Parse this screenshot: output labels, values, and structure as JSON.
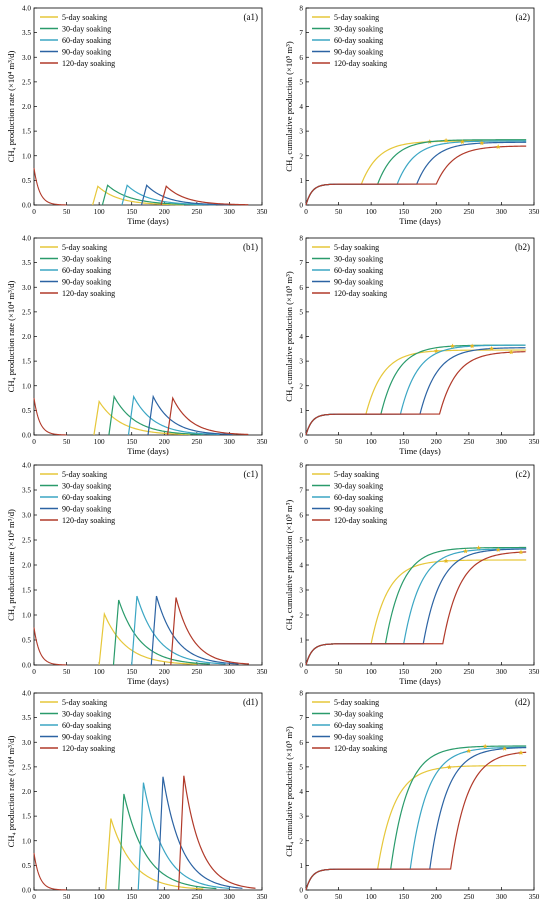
{
  "colors": {
    "s5": "#E6C73A",
    "s30": "#2A9B6B",
    "s60": "#3BA6C4",
    "s90": "#2C63A3",
    "s120": "#B13A2A"
  },
  "axis_titles": {
    "x": "Time (days)",
    "y_left": "CH₄ production rate (×10⁴ m³/d)",
    "y_right": "CH₄ cumulative production (×10⁵ m³)"
  },
  "chart_data": [
    {
      "type": "line",
      "panel": "(a1)",
      "xlabel": "Time (days)",
      "ylabel": "CH₄ production rate (×10⁴ m³/d)",
      "xlim": [
        0,
        350
      ],
      "ylim": [
        0,
        4.0
      ],
      "xticks": [
        "0",
        "50",
        "100",
        "150",
        "200",
        "250",
        "300",
        "350"
      ],
      "yticks": [
        "0.0",
        "0.5",
        "1.0",
        "1.5",
        "2.0",
        "2.5",
        "3.0",
        "3.5",
        "4.0"
      ],
      "legend": [
        "5-day soaking",
        "30-day soaking",
        "60-day soaking",
        "90-day soaking",
        "120-day soaking"
      ],
      "legend_position": "top-left",
      "initial": {
        "start": 0.75,
        "end_day": 50
      },
      "series": [
        {
          "name": "5-day soaking",
          "start": 90,
          "peak": 0.38,
          "end": 230,
          "color_key": "s5"
        },
        {
          "name": "30-day soaking",
          "start": 105,
          "peak": 0.4,
          "end": 260,
          "color_key": "s30"
        },
        {
          "name": "60-day soaking",
          "start": 135,
          "peak": 0.4,
          "end": 280,
          "color_key": "s60"
        },
        {
          "name": "90-day soaking",
          "start": 165,
          "peak": 0.4,
          "end": 300,
          "color_key": "s90"
        },
        {
          "name": "120-day soaking",
          "start": 195,
          "peak": 0.38,
          "end": 330,
          "color_key": "s120"
        }
      ]
    },
    {
      "type": "line",
      "panel": "(a2)",
      "xlabel": "Time (days)",
      "ylabel": "CH₄ cumulative production (×10⁵ m³)",
      "xlim": [
        0,
        350
      ],
      "ylim": [
        0,
        8
      ],
      "xticks": [
        "0",
        "50",
        "100",
        "150",
        "200",
        "250",
        "300",
        "350"
      ],
      "yticks": [
        "0",
        "1",
        "2",
        "3",
        "4",
        "5",
        "6",
        "7",
        "8"
      ],
      "legend": [
        "5-day soaking",
        "30-day soaking",
        "60-day soaking",
        "90-day soaking",
        "120-day soaking"
      ],
      "legend_position": "top-left",
      "plateau": 0.85,
      "series": [
        {
          "name": "5-day soaking",
          "start": 85,
          "final": 2.6,
          "star_x": 190,
          "color_key": "s5"
        },
        {
          "name": "30-day soaking",
          "start": 110,
          "final": 2.65,
          "star_x": 215,
          "color_key": "s30"
        },
        {
          "name": "60-day soaking",
          "start": 140,
          "final": 2.6,
          "star_x": 240,
          "color_key": "s60"
        },
        {
          "name": "90-day soaking",
          "start": 170,
          "final": 2.55,
          "star_x": 270,
          "color_key": "s90"
        },
        {
          "name": "120-day soaking",
          "start": 200,
          "final": 2.4,
          "star_x": 295,
          "color_key": "s120"
        }
      ]
    },
    {
      "type": "line",
      "panel": "(b1)",
      "xlabel": "Time (days)",
      "ylabel": "CH₄ production rate (×10⁴ m³/d)",
      "xlim": [
        0,
        350
      ],
      "ylim": [
        0,
        4.0
      ],
      "xticks": [
        "0",
        "50",
        "100",
        "150",
        "200",
        "250",
        "300",
        "350"
      ],
      "yticks": [
        "0.0",
        "0.5",
        "1.0",
        "1.5",
        "2.0",
        "2.5",
        "3.0",
        "3.5",
        "4.0"
      ],
      "legend": [
        "5-day soaking",
        "30-day soaking",
        "60-day soaking",
        "90-day soaking",
        "120-day soaking"
      ],
      "legend_position": "top-left",
      "initial": {
        "start": 0.75,
        "end_day": 50
      },
      "series": [
        {
          "name": "5-day soaking",
          "start": 92,
          "peak": 0.68,
          "end": 240,
          "color_key": "s5"
        },
        {
          "name": "30-day soaking",
          "start": 115,
          "peak": 0.78,
          "end": 260,
          "color_key": "s30"
        },
        {
          "name": "60-day soaking",
          "start": 145,
          "peak": 0.78,
          "end": 285,
          "color_key": "s60"
        },
        {
          "name": "90-day soaking",
          "start": 175,
          "peak": 0.78,
          "end": 305,
          "color_key": "s90"
        },
        {
          "name": "120-day soaking",
          "start": 205,
          "peak": 0.75,
          "end": 330,
          "color_key": "s120"
        }
      ]
    },
    {
      "type": "line",
      "panel": "(b2)",
      "xlabel": "Time (days)",
      "ylabel": "CH₄ cumulative production (×10⁵ m³)",
      "xlim": [
        0,
        350
      ],
      "ylim": [
        0,
        8
      ],
      "xticks": [
        "0",
        "50",
        "100",
        "150",
        "200",
        "250",
        "300",
        "350"
      ],
      "yticks": [
        "0",
        "1",
        "2",
        "3",
        "4",
        "5",
        "6",
        "7",
        "8"
      ],
      "legend": [
        "5-day soaking",
        "30-day soaking",
        "60-day soaking",
        "90-day soaking",
        "120-day soaking"
      ],
      "legend_position": "top-left",
      "plateau": 0.85,
      "series": [
        {
          "name": "5-day soaking",
          "start": 92,
          "final": 3.45,
          "star_x": 200,
          "color_key": "s5"
        },
        {
          "name": "30-day soaking",
          "start": 115,
          "final": 3.65,
          "star_x": 225,
          "color_key": "s30"
        },
        {
          "name": "60-day soaking",
          "start": 145,
          "final": 3.65,
          "star_x": 255,
          "color_key": "s60"
        },
        {
          "name": "90-day soaking",
          "start": 175,
          "final": 3.55,
          "star_x": 285,
          "color_key": "s90"
        },
        {
          "name": "120-day soaking",
          "start": 205,
          "final": 3.4,
          "star_x": 315,
          "color_key": "s120"
        }
      ]
    },
    {
      "type": "line",
      "panel": "(c1)",
      "xlabel": "Time (days)",
      "ylabel": "CH₄ production rate (×10⁴ m³/d)",
      "xlim": [
        0,
        350
      ],
      "ylim": [
        0,
        4.0
      ],
      "xticks": [
        "0",
        "50",
        "100",
        "150",
        "200",
        "250",
        "300",
        "350"
      ],
      "yticks": [
        "0.0",
        "0.5",
        "1.0",
        "1.5",
        "2.0",
        "2.5",
        "3.0",
        "3.5",
        "4.0"
      ],
      "legend": [
        "5-day soaking",
        "30-day soaking",
        "60-day soaking",
        "90-day soaking",
        "120-day soaking"
      ],
      "legend_position": "top-left",
      "initial": {
        "start": 0.75,
        "end_day": 50
      },
      "series": [
        {
          "name": "5-day soaking",
          "start": 100,
          "peak": 1.02,
          "end": 250,
          "color_key": "s5"
        },
        {
          "name": "30-day soaking",
          "start": 122,
          "peak": 1.3,
          "end": 270,
          "color_key": "s30"
        },
        {
          "name": "60-day soaking",
          "start": 150,
          "peak": 1.38,
          "end": 295,
          "color_key": "s60"
        },
        {
          "name": "90-day soaking",
          "start": 180,
          "peak": 1.38,
          "end": 315,
          "color_key": "s90"
        },
        {
          "name": "120-day soaking",
          "start": 210,
          "peak": 1.35,
          "end": 330,
          "color_key": "s120"
        }
      ]
    },
    {
      "type": "line",
      "panel": "(c2)",
      "xlabel": "Time (days)",
      "ylabel": "CH₄ cumulative production (×10⁵ m³)",
      "xlim": [
        0,
        350
      ],
      "ylim": [
        0,
        8
      ],
      "xticks": [
        "0",
        "50",
        "100",
        "150",
        "200",
        "250",
        "300",
        "350"
      ],
      "yticks": [
        "0",
        "1",
        "2",
        "3",
        "4",
        "5",
        "6",
        "7",
        "8"
      ],
      "legend": [
        "5-day soaking",
        "30-day soaking",
        "60-day soaking",
        "90-day soaking",
        "120-day soaking"
      ],
      "legend_position": "top-left",
      "plateau": 0.85,
      "series": [
        {
          "name": "5-day soaking",
          "start": 100,
          "final": 4.2,
          "star_x": 215,
          "color_key": "s5"
        },
        {
          "name": "30-day soaking",
          "start": 122,
          "final": 4.7,
          "star_x": 265,
          "color_key": "s30"
        },
        {
          "name": "60-day soaking",
          "start": 150,
          "final": 4.65,
          "star_x": 245,
          "color_key": "s60"
        },
        {
          "name": "90-day soaking",
          "start": 180,
          "final": 4.65,
          "star_x": 295,
          "color_key": "s90"
        },
        {
          "name": "120-day soaking",
          "start": 210,
          "final": 4.55,
          "star_x": 330,
          "color_key": "s120"
        }
      ]
    },
    {
      "type": "line",
      "panel": "(d1)",
      "xlabel": "Time (days)",
      "ylabel": "CH₄ production rate (×10⁴ m³/d)",
      "xlim": [
        0,
        350
      ],
      "ylim": [
        0,
        4.0
      ],
      "xticks": [
        "0",
        "50",
        "100",
        "150",
        "200",
        "250",
        "300",
        "350"
      ],
      "yticks": [
        "0.0",
        "0.5",
        "1.0",
        "1.5",
        "2.0",
        "2.5",
        "3.0",
        "3.5",
        "4.0"
      ],
      "legend": [
        "5-day soaking",
        "30-day soaking",
        "60-day soaking",
        "90-day soaking",
        "120-day soaking"
      ],
      "legend_position": "top-left",
      "initial": {
        "start": 0.75,
        "end_day": 50
      },
      "series": [
        {
          "name": "5-day soaking",
          "start": 110,
          "peak": 1.45,
          "end": 260,
          "color_key": "s5"
        },
        {
          "name": "30-day soaking",
          "start": 130,
          "peak": 1.95,
          "end": 280,
          "color_key": "s30"
        },
        {
          "name": "60-day soaking",
          "start": 160,
          "peak": 2.18,
          "end": 300,
          "color_key": "s60"
        },
        {
          "name": "90-day soaking",
          "start": 190,
          "peak": 2.3,
          "end": 320,
          "color_key": "s90"
        },
        {
          "name": "120-day soaking",
          "start": 222,
          "peak": 2.32,
          "end": 340,
          "color_key": "s120"
        }
      ]
    },
    {
      "type": "line",
      "panel": "(d2)",
      "xlabel": "Time (days)",
      "ylabel": "CH₄ cumulative production (×10⁵ m³)",
      "xlim": [
        0,
        350
      ],
      "ylim": [
        0,
        8
      ],
      "xticks": [
        "0",
        "50",
        "100",
        "150",
        "200",
        "250",
        "300",
        "350"
      ],
      "yticks": [
        "0",
        "1",
        "2",
        "3",
        "4",
        "5",
        "6",
        "7",
        "8"
      ],
      "legend": [
        "5-day soaking",
        "30-day soaking",
        "60-day soaking",
        "90-day soaking",
        "120-day soaking"
      ],
      "legend_position": "top-left",
      "plateau": 0.85,
      "series": [
        {
          "name": "5-day soaking",
          "start": 110,
          "final": 5.05,
          "star_x": 220,
          "color_key": "s5"
        },
        {
          "name": "30-day soaking",
          "start": 130,
          "final": 5.85,
          "star_x": 275,
          "color_key": "s30"
        },
        {
          "name": "60-day soaking",
          "start": 160,
          "final": 5.8,
          "star_x": 250,
          "color_key": "s60"
        },
        {
          "name": "90-day soaking",
          "start": 190,
          "final": 5.8,
          "star_x": 305,
          "color_key": "s90"
        },
        {
          "name": "120-day soaking",
          "start": 222,
          "final": 5.65,
          "star_x": 330,
          "color_key": "s120"
        }
      ]
    }
  ]
}
